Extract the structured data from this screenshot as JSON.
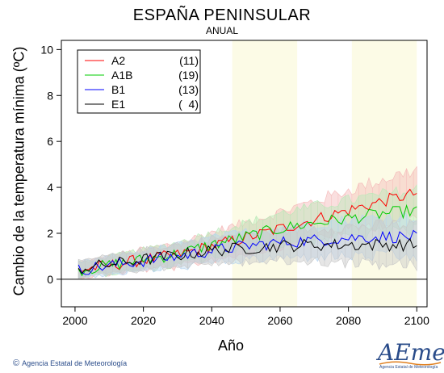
{
  "title": "ESPAÑA PENINSULAR",
  "subtitle": "ANUAL",
  "footer": "Agencia Estatal de Meteorología",
  "logo": {
    "word": "AEmet",
    "sub": "Agencia Estatal de Meteorología"
  },
  "chart_data": {
    "type": "line",
    "title": "ESPAÑA PENINSULAR",
    "subtitle": "ANUAL",
    "xlabel": "Año",
    "ylabel": "Cambio de la temperatura mínima (ºC)",
    "xlim": [
      1996,
      2103
    ],
    "ylim": [
      -1.2,
      10.4
    ],
    "xticks": [
      2000,
      2020,
      2040,
      2060,
      2080,
      2100
    ],
    "yticks": [
      0,
      2,
      4,
      6,
      8,
      10
    ],
    "zero_line": true,
    "shaded_periods": [
      [
        2046,
        2065
      ],
      [
        2081,
        2100
      ]
    ],
    "legend_position": "top-left",
    "series": [
      {
        "name": "A2",
        "count": "(11)",
        "color": "#ff0000",
        "band_color": "#f4b8b8",
        "knots": [
          [
            2001,
            0.4
          ],
          [
            2010,
            0.6
          ],
          [
            2020,
            0.85
          ],
          [
            2030,
            1.05
          ],
          [
            2040,
            1.45
          ],
          [
            2050,
            1.8
          ],
          [
            2060,
            2.2
          ],
          [
            2070,
            2.6
          ],
          [
            2080,
            3.0
          ],
          [
            2090,
            3.4
          ],
          [
            2100,
            3.75
          ]
        ]
      },
      {
        "name": "A1B",
        "count": "(19)",
        "color": "#00cc00",
        "band_color": "#b8e8b8",
        "knots": [
          [
            2001,
            0.4
          ],
          [
            2010,
            0.6
          ],
          [
            2020,
            0.85
          ],
          [
            2030,
            1.1
          ],
          [
            2040,
            1.5
          ],
          [
            2050,
            1.85
          ],
          [
            2060,
            2.2
          ],
          [
            2070,
            2.45
          ],
          [
            2080,
            2.65
          ],
          [
            2090,
            2.85
          ],
          [
            2100,
            3.0
          ]
        ]
      },
      {
        "name": "B1",
        "count": "(13)",
        "color": "#0000ff",
        "band_color": "#b8d4ee",
        "knots": [
          [
            2001,
            0.4
          ],
          [
            2010,
            0.6
          ],
          [
            2020,
            0.8
          ],
          [
            2030,
            1.0
          ],
          [
            2040,
            1.25
          ],
          [
            2050,
            1.45
          ],
          [
            2060,
            1.6
          ],
          [
            2070,
            1.7
          ],
          [
            2080,
            1.8
          ],
          [
            2090,
            1.85
          ],
          [
            2100,
            1.85
          ]
        ]
      },
      {
        "name": "E1",
        "count": "(  4)",
        "color": "#000000",
        "band_color": "#c8c8c8",
        "knots": [
          [
            2001,
            0.45
          ],
          [
            2010,
            0.65
          ],
          [
            2020,
            0.85
          ],
          [
            2030,
            1.05
          ],
          [
            2040,
            1.25
          ],
          [
            2050,
            1.35
          ],
          [
            2060,
            1.45
          ],
          [
            2070,
            1.5
          ],
          [
            2080,
            1.5
          ],
          [
            2090,
            1.5
          ],
          [
            2100,
            1.5
          ]
        ]
      }
    ]
  }
}
